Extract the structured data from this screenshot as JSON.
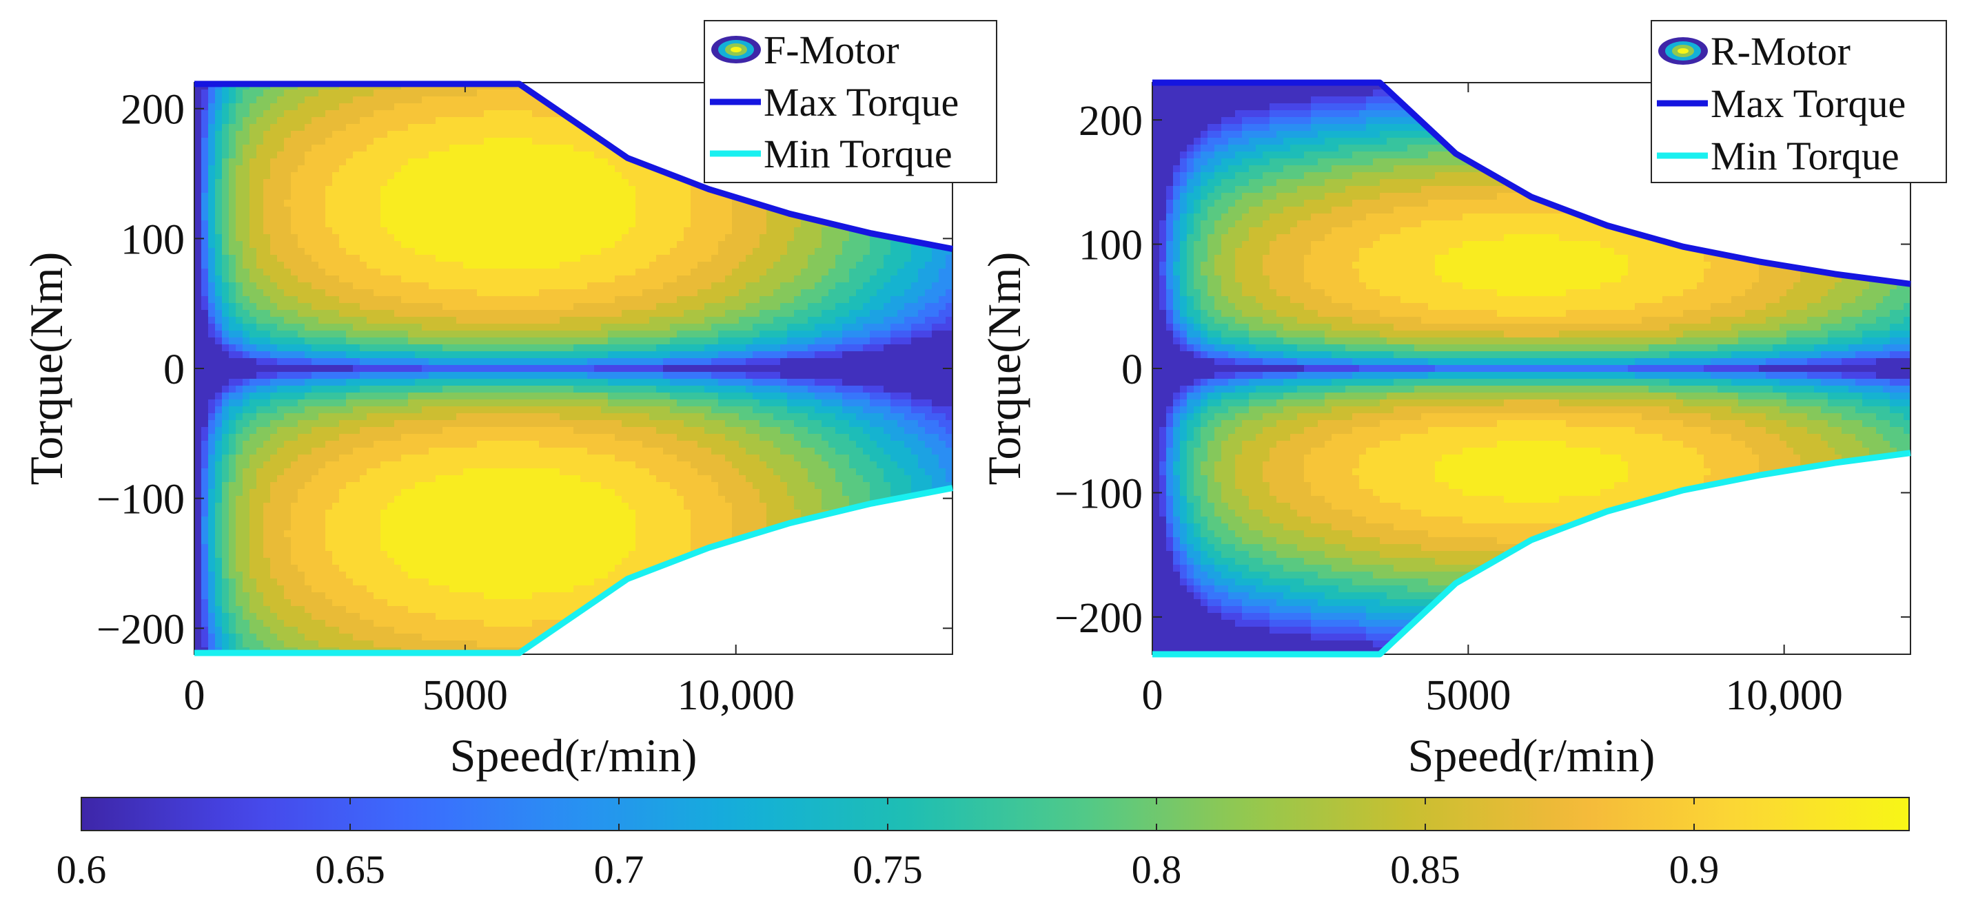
{
  "chart_data": [
    {
      "type": "contour",
      "title": "",
      "xlabel": "Speed(r/min)",
      "ylabel": "Torque(Nm)",
      "xlim": [
        0,
        14000
      ],
      "ylim": [
        -220,
        220
      ],
      "xticks": [
        {
          "value": 0,
          "label": "0"
        },
        {
          "value": 5000,
          "label": "5000"
        },
        {
          "value": 10000,
          "label": "10,000"
        }
      ],
      "yticks": [
        {
          "value": 200,
          "label": "200"
        },
        {
          "value": 100,
          "label": "100"
        },
        {
          "value": 0,
          "label": "0"
        },
        {
          "value": -100,
          "label": "−100"
        },
        {
          "value": -200,
          "label": "−200"
        }
      ],
      "legend": [
        "F-Motor",
        "Max Torque",
        "Min Torque"
      ],
      "legend_position": "top-right",
      "max_torque_curve": {
        "speed": [
          0,
          6000,
          8000,
          9500,
          11000,
          12500,
          14000
        ],
        "torque": [
          219,
          219,
          162,
          138,
          119,
          104,
          92
        ]
      },
      "min_torque_curve": {
        "speed": [
          0,
          6000,
          8000,
          9500,
          11000,
          12500,
          14000
        ],
        "torque": [
          -219,
          -219,
          -162,
          -138,
          -119,
          -104,
          -92
        ]
      },
      "efficiency_field": {
        "peak_speed": 5800,
        "peak_torque": 125,
        "peak_efficiency": 0.94,
        "speed_spread": 5400,
        "torque_spread": 95
      }
    },
    {
      "type": "contour",
      "title": "",
      "xlabel": "Speed(r/min)",
      "ylabel": "Torque(Nm)",
      "xlim": [
        0,
        12000
      ],
      "ylim": [
        -230,
        230
      ],
      "xticks": [
        {
          "value": 0,
          "label": "0"
        },
        {
          "value": 5000,
          "label": "5000"
        },
        {
          "value": 10000,
          "label": "10,000"
        }
      ],
      "yticks": [
        {
          "value": 200,
          "label": "200"
        },
        {
          "value": 100,
          "label": "100"
        },
        {
          "value": 0,
          "label": "0"
        },
        {
          "value": -100,
          "label": "−100"
        },
        {
          "value": -200,
          "label": "−200"
        }
      ],
      "legend": [
        "R-Motor",
        "Max Torque",
        "Min Torque"
      ],
      "legend_position": "top-right",
      "max_torque_curve": {
        "speed": [
          0,
          3600,
          4800,
          6000,
          7200,
          8400,
          9600,
          10800,
          12000
        ],
        "torque": [
          230,
          230,
          173,
          138,
          115,
          98,
          86,
          76,
          68
        ]
      },
      "min_torque_curve": {
        "speed": [
          0,
          3600,
          4800,
          6000,
          7200,
          8400,
          9600,
          10800,
          12000
        ],
        "torque": [
          -230,
          -230,
          -173,
          -138,
          -115,
          -98,
          -86,
          -76,
          -68
        ]
      },
      "efficiency_field": {
        "peak_speed": 6000,
        "peak_torque": 80,
        "peak_efficiency": 0.93,
        "speed_spread": 5200,
        "torque_spread": 70
      }
    },
    {
      "type": "colorbar",
      "range": [
        0.6,
        0.94
      ],
      "ticks": [
        {
          "value": 0.6,
          "label": "0.6"
        },
        {
          "value": 0.65,
          "label": "0.65"
        },
        {
          "value": 0.7,
          "label": "0.7"
        },
        {
          "value": 0.75,
          "label": "0.75"
        },
        {
          "value": 0.8,
          "label": "0.8"
        },
        {
          "value": 0.85,
          "label": "0.85"
        },
        {
          "value": 0.9,
          "label": "0.9"
        }
      ]
    }
  ],
  "colors": {
    "max_torque": "#1515e0",
    "min_torque": "#19f0f0",
    "colormap": [
      "#3e26a8",
      "#4746e9",
      "#3c6cfe",
      "#2891f2",
      "#13b0d8",
      "#1fbfb2",
      "#4fc98a",
      "#93c84f",
      "#c9bf30",
      "#f4b93a",
      "#fcd834",
      "#f8f616"
    ]
  }
}
